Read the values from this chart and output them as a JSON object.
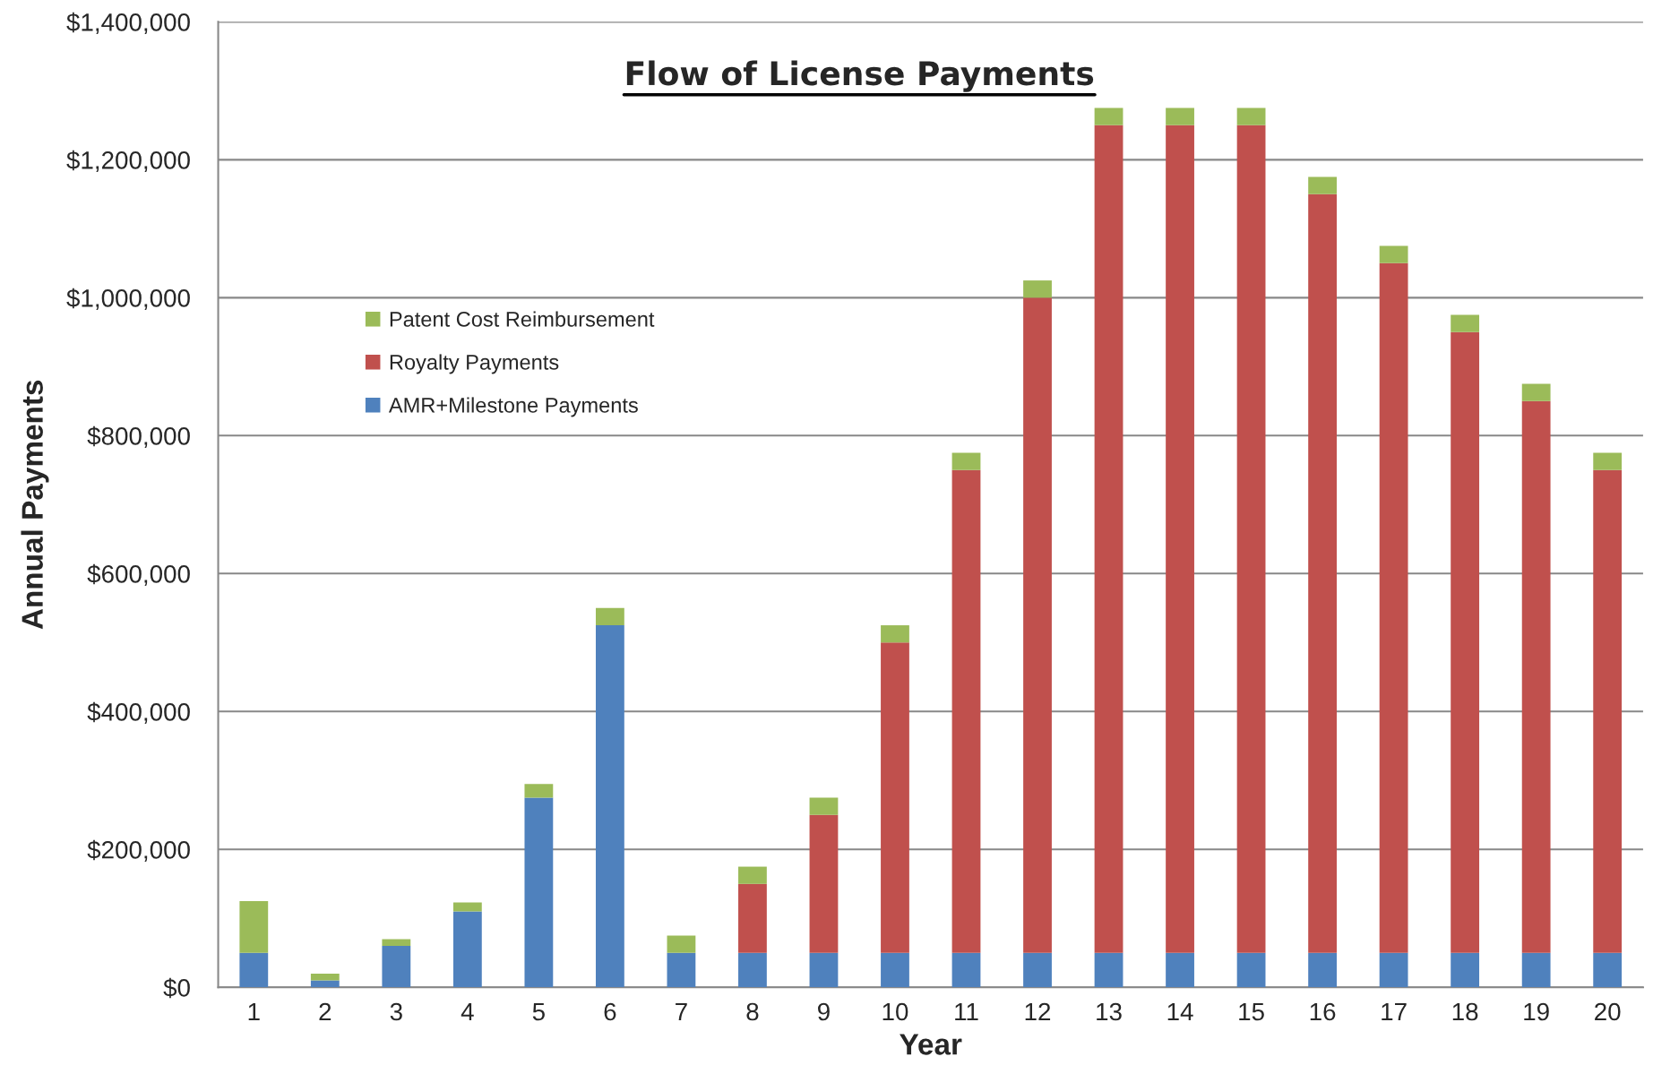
{
  "chart_data": {
    "type": "bar",
    "stacked": true,
    "title": "Flow of License Payments",
    "xlabel": "Year",
    "ylabel": "Annual Payments",
    "categories": [
      "1",
      "2",
      "3",
      "4",
      "5",
      "6",
      "7",
      "8",
      "9",
      "10",
      "11",
      "12",
      "13",
      "14",
      "15",
      "16",
      "17",
      "18",
      "19",
      "20"
    ],
    "series": [
      {
        "name": "AMR+Milestone Payments",
        "color": "#4f81bd",
        "values": [
          50000,
          10000,
          60000,
          110000,
          275000,
          525000,
          50000,
          50000,
          50000,
          50000,
          50000,
          50000,
          50000,
          50000,
          50000,
          50000,
          50000,
          50000,
          50000,
          50000
        ]
      },
      {
        "name": "Royalty Payments",
        "color": "#c0504d",
        "values": [
          0,
          0,
          0,
          0,
          0,
          0,
          0,
          100000,
          200000,
          450000,
          700000,
          950000,
          1200000,
          1200000,
          1200000,
          1100000,
          1000000,
          900000,
          800000,
          700000
        ]
      },
      {
        "name": "Patent Cost Reimbursement",
        "color": "#9bbb59",
        "values": [
          75000,
          10000,
          10000,
          13000,
          20000,
          25000,
          25000,
          25000,
          25000,
          25000,
          25000,
          25000,
          25000,
          25000,
          25000,
          25000,
          25000,
          25000,
          25000,
          25000
        ]
      }
    ],
    "ylim": [
      0,
      1400000
    ],
    "yticks": [
      {
        "value": 0,
        "label": "$0"
      },
      {
        "value": 200000,
        "label": "$200,000"
      },
      {
        "value": 400000,
        "label": "$400,000"
      },
      {
        "value": 600000,
        "label": "$600,000"
      },
      {
        "value": 800000,
        "label": "$800,000"
      },
      {
        "value": 1000000,
        "label": "$1,000,000"
      },
      {
        "value": 1200000,
        "label": "$1,200,000"
      },
      {
        "value": 1400000,
        "label": "$1,400,000"
      }
    ],
    "grid": "y",
    "legend": "top left"
  }
}
